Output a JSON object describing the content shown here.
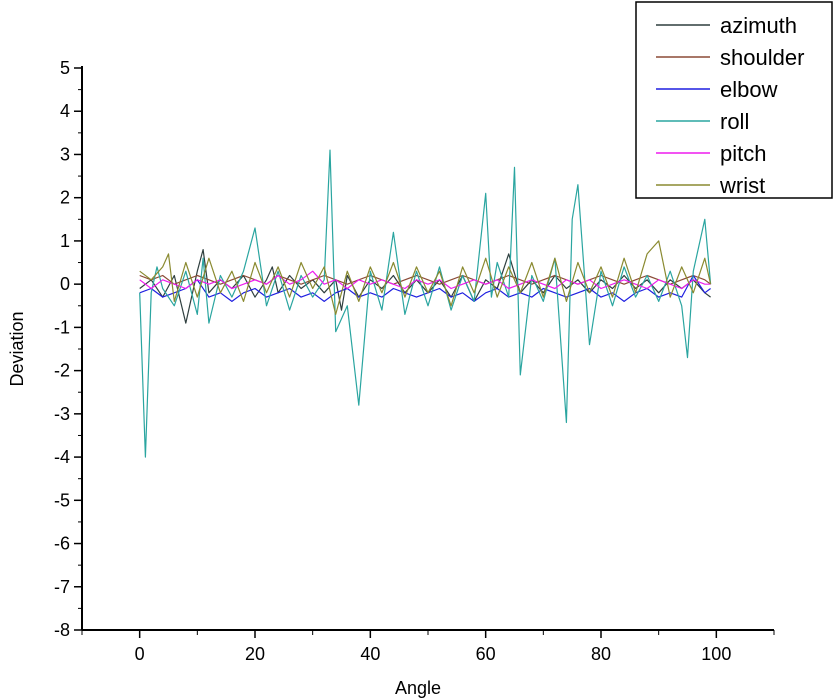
{
  "chart_data": {
    "type": "line",
    "xlabel": "Angle",
    "ylabel": "Deviation",
    "xlim": [
      -10,
      110
    ],
    "ylim": [
      -8,
      5
    ],
    "x_ticks": [
      0,
      20,
      40,
      60,
      80,
      100
    ],
    "x_tick_labels": [
      "0",
      "20",
      "40",
      "60",
      "80",
      "100"
    ],
    "y_ticks": [
      5,
      4,
      3,
      2,
      1,
      0,
      -1,
      -2,
      -3,
      -4,
      -5,
      -6,
      -7,
      -8
    ],
    "y_tick_labels": [
      "5",
      "4",
      "3",
      "2",
      "1",
      "0",
      "-1",
      "-2",
      "-3",
      "-4",
      "-5",
      "-6",
      "-7",
      "-8"
    ],
    "grid": false,
    "legend_position": "top-right",
    "series": [
      {
        "name": "azimuth",
        "color": "#2f3f3f",
        "x": [
          0,
          2,
          4,
          6,
          8,
          10,
          11,
          12,
          14,
          16,
          18,
          20,
          22,
          23,
          24,
          26,
          28,
          30,
          32,
          34,
          35,
          36,
          38,
          40,
          42,
          44,
          46,
          48,
          50,
          52,
          54,
          56,
          58,
          60,
          62,
          64,
          66,
          68,
          70,
          72,
          74,
          76,
          78,
          80,
          82,
          84,
          86,
          88,
          90,
          92,
          94,
          96,
          98,
          99
        ],
        "values": [
          -0.1,
          0.1,
          -0.3,
          0.2,
          -0.9,
          0.3,
          0.8,
          -0.2,
          0.1,
          -0.1,
          0.2,
          -0.3,
          0.1,
          0.4,
          -0.2,
          0.2,
          -0.1,
          0.1,
          -0.2,
          0.1,
          -0.6,
          0.2,
          -0.3,
          0.1,
          -0.1,
          0.2,
          -0.2,
          0.1,
          -0.2,
          0.1,
          -0.3,
          0.2,
          -0.4,
          0.1,
          -0.1,
          0.7,
          -0.2,
          0.1,
          -0.2,
          0.2,
          -0.1,
          0.1,
          -0.2,
          0.1,
          -0.1,
          0.2,
          -0.1,
          0.1,
          -0.2,
          0.1,
          -0.1,
          0.1,
          -0.2,
          -0.3
        ]
      },
      {
        "name": "shoulder",
        "color": "#8b4a36",
        "x": [
          0,
          2,
          4,
          6,
          8,
          10,
          12,
          14,
          16,
          18,
          20,
          22,
          24,
          26,
          28,
          30,
          32,
          34,
          36,
          38,
          40,
          42,
          44,
          46,
          48,
          50,
          52,
          54,
          56,
          58,
          60,
          62,
          64,
          66,
          68,
          70,
          72,
          74,
          76,
          78,
          80,
          82,
          84,
          86,
          88,
          90,
          92,
          94,
          96,
          98,
          99
        ],
        "values": [
          0.2,
          0.1,
          0.2,
          0.0,
          0.1,
          0.2,
          0.1,
          0.0,
          0.1,
          0.2,
          0.1,
          0.0,
          0.2,
          0.1,
          0.0,
          0.1,
          0.2,
          0.1,
          0.0,
          0.1,
          0.2,
          0.1,
          0.0,
          0.1,
          0.2,
          0.1,
          0.0,
          0.1,
          0.2,
          0.1,
          0.0,
          0.1,
          0.2,
          0.1,
          0.0,
          0.1,
          0.2,
          0.1,
          0.0,
          0.1,
          0.2,
          0.1,
          0.0,
          0.1,
          0.2,
          0.1,
          0.0,
          0.1,
          0.2,
          0.1,
          0.0
        ]
      },
      {
        "name": "elbow",
        "color": "#1f1fe0",
        "x": [
          0,
          2,
          4,
          6,
          8,
          10,
          12,
          14,
          16,
          18,
          20,
          22,
          24,
          26,
          28,
          30,
          32,
          34,
          36,
          38,
          40,
          42,
          44,
          46,
          48,
          50,
          52,
          54,
          56,
          58,
          60,
          62,
          64,
          66,
          68,
          70,
          72,
          74,
          76,
          78,
          80,
          82,
          84,
          86,
          88,
          90,
          92,
          94,
          96,
          98,
          99
        ],
        "values": [
          -0.2,
          -0.1,
          -0.3,
          -0.2,
          -0.1,
          0.1,
          -0.3,
          -0.2,
          -0.4,
          -0.2,
          -0.1,
          -0.3,
          -0.2,
          -0.1,
          -0.3,
          -0.2,
          -0.4,
          -0.2,
          -0.1,
          -0.3,
          -0.2,
          -0.3,
          -0.1,
          -0.2,
          -0.3,
          -0.2,
          -0.1,
          -0.3,
          -0.2,
          -0.4,
          -0.2,
          -0.1,
          -0.3,
          -0.2,
          -0.3,
          -0.1,
          -0.2,
          -0.3,
          -0.2,
          -0.1,
          -0.3,
          -0.2,
          -0.4,
          -0.2,
          -0.1,
          -0.3,
          -0.2,
          -0.3,
          0.2,
          -0.2,
          -0.1
        ]
      },
      {
        "name": "roll",
        "color": "#2aa5a0",
        "x": [
          0,
          1,
          2,
          3,
          4,
          6,
          8,
          10,
          11,
          12,
          14,
          16,
          18,
          20,
          22,
          24,
          26,
          28,
          30,
          32,
          33,
          34,
          36,
          38,
          40,
          42,
          44,
          46,
          48,
          50,
          52,
          54,
          56,
          58,
          60,
          61,
          62,
          64,
          65,
          66,
          68,
          70,
          72,
          74,
          75,
          76,
          78,
          80,
          82,
          84,
          86,
          88,
          90,
          92,
          94,
          95,
          96,
          98,
          99
        ],
        "values": [
          -0.2,
          -4.0,
          -0.2,
          0.4,
          -0.1,
          -0.5,
          0.3,
          -0.7,
          0.6,
          -0.9,
          0.2,
          -0.3,
          0.3,
          1.3,
          -0.5,
          0.3,
          -0.6,
          0.2,
          -0.3,
          0.1,
          3.1,
          -1.1,
          -0.5,
          -2.8,
          0.3,
          -0.6,
          1.2,
          -0.7,
          0.3,
          -0.5,
          0.4,
          -0.6,
          0.2,
          -0.4,
          2.1,
          -0.3,
          0.5,
          -0.3,
          2.7,
          -2.1,
          0.2,
          -0.4,
          0.6,
          -3.2,
          1.5,
          2.3,
          -1.4,
          0.3,
          -0.5,
          0.4,
          -0.3,
          0.2,
          -0.4,
          0.3,
          -0.5,
          -1.7,
          0.3,
          1.5,
          0.0
        ]
      },
      {
        "name": "pitch",
        "color": "#ee1cee",
        "x": [
          0,
          2,
          4,
          6,
          8,
          10,
          12,
          14,
          16,
          18,
          20,
          22,
          24,
          26,
          28,
          30,
          32,
          34,
          36,
          38,
          40,
          42,
          44,
          46,
          48,
          50,
          52,
          54,
          56,
          58,
          60,
          62,
          64,
          66,
          68,
          70,
          72,
          74,
          76,
          78,
          80,
          82,
          84,
          86,
          88,
          90,
          92,
          94,
          96,
          98,
          99
        ],
        "values": [
          0.1,
          -0.1,
          0.1,
          0.0,
          -0.1,
          0.1,
          0.0,
          0.1,
          -0.1,
          0.0,
          0.1,
          0.0,
          0.2,
          0.0,
          0.1,
          0.3,
          0.0,
          0.1,
          -0.1,
          0.1,
          0.0,
          0.1,
          0.0,
          -0.1,
          0.1,
          0.0,
          0.1,
          -0.1,
          0.0,
          0.1,
          0.0,
          0.1,
          -0.1,
          0.0,
          0.1,
          0.0,
          -0.1,
          0.1,
          0.0,
          0.1,
          -0.1,
          0.0,
          0.1,
          0.0,
          -0.1,
          0.1,
          0.0,
          -0.1,
          0.1,
          0.0,
          0.0
        ]
      },
      {
        "name": "wrist",
        "color": "#8a8a30",
        "x": [
          0,
          2,
          4,
          5,
          6,
          8,
          10,
          12,
          14,
          16,
          18,
          20,
          22,
          24,
          26,
          28,
          30,
          32,
          34,
          36,
          38,
          40,
          42,
          44,
          46,
          48,
          50,
          52,
          54,
          56,
          58,
          60,
          62,
          64,
          66,
          68,
          70,
          72,
          74,
          76,
          78,
          80,
          82,
          84,
          86,
          88,
          90,
          92,
          94,
          96,
          98,
          99
        ],
        "values": [
          0.3,
          0.1,
          0.4,
          0.7,
          -0.4,
          0.5,
          -0.3,
          0.6,
          -0.2,
          0.3,
          -0.4,
          0.5,
          -0.2,
          0.4,
          -0.3,
          0.5,
          -0.1,
          0.4,
          -0.7,
          0.3,
          -0.4,
          0.4,
          -0.2,
          0.5,
          -0.3,
          0.4,
          -0.2,
          0.3,
          -0.5,
          0.4,
          -0.2,
          0.6,
          -0.3,
          0.4,
          -0.2,
          0.5,
          -0.3,
          0.6,
          -0.4,
          0.5,
          -0.2,
          0.4,
          -0.3,
          0.6,
          -0.2,
          0.7,
          1.0,
          -0.3,
          0.4,
          -0.2,
          0.6,
          0.0
        ]
      }
    ]
  }
}
